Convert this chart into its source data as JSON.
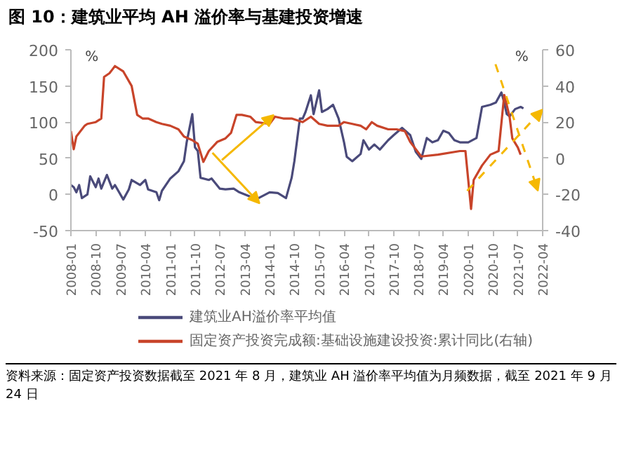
{
  "chart_data": {
    "type": "line",
    "title": "图 10：建筑业平均 AH 溢价率与基建投资增速",
    "ylabel": "%",
    "y2label": "%",
    "legend": "bottom",
    "xlim": [
      "2008-01",
      "2022-04"
    ],
    "xticks": [
      "2008-01",
      "2008-10",
      "2009-07",
      "2010-04",
      "2011-01",
      "2011-10",
      "2012-07",
      "2013-04",
      "2014-01",
      "2014-10",
      "2015-07",
      "2016-04",
      "2017-01",
      "2017-10",
      "2018-07",
      "2019-04",
      "2020-01",
      "2020-10",
      "2021-07",
      "2022-04"
    ],
    "ylim": [
      -50,
      200
    ],
    "yticks": [
      -50,
      0,
      50,
      100,
      150,
      200
    ],
    "y2lim": [
      -40,
      60
    ],
    "y2ticks": [
      -40,
      -20,
      0,
      20,
      40,
      60
    ],
    "series": [
      {
        "name": "建筑业AH溢价率平均值",
        "color": "#4a4a7a",
        "x": [
          "2008-01",
          "2008-02",
          "2008-03",
          "2008-04",
          "2008-05",
          "2008-07",
          "2008-08",
          "2008-10",
          "2008-11",
          "2008-12",
          "2009-02",
          "2009-04",
          "2009-05",
          "2009-08",
          "2009-10",
          "2009-11",
          "2010-02",
          "2010-04",
          "2010-05",
          "2010-08",
          "2010-09",
          "2010-10",
          "2011-01",
          "2011-04",
          "2011-06",
          "2011-07",
          "2011-09",
          "2011-10",
          "2011-11",
          "2011-12",
          "2012-03",
          "2012-04",
          "2012-07",
          "2012-09",
          "2012-12",
          "2013-02",
          "2013-06",
          "2013-09",
          "2014-01",
          "2014-04",
          "2014-07",
          "2014-09",
          "2014-10",
          "2014-12",
          "2015-01",
          "2015-02",
          "2015-04",
          "2015-05",
          "2015-07",
          "2015-08",
          "2015-10",
          "2015-12",
          "2016-02",
          "2016-04",
          "2016-05",
          "2016-07",
          "2016-10",
          "2016-11",
          "2017-01",
          "2017-03",
          "2017-05",
          "2017-08",
          "2017-10",
          "2018-01",
          "2018-04",
          "2018-06",
          "2018-08",
          "2018-10",
          "2018-12",
          "2019-02",
          "2019-04",
          "2019-06",
          "2019-08",
          "2019-10",
          "2020-01",
          "2020-04",
          "2020-06",
          "2020-09",
          "2020-11",
          "2021-01",
          "2021-02",
          "2021-03",
          "2021-04",
          "2021-06",
          "2021-08",
          "2021-09"
        ],
        "values": [
          13,
          10,
          3,
          13,
          -5,
          0,
          25,
          10,
          22,
          8,
          27,
          8,
          13,
          -7,
          7,
          20,
          13,
          20,
          7,
          3,
          -8,
          5,
          22,
          32,
          46,
          72,
          111,
          65,
          60,
          23,
          20,
          22,
          8,
          7,
          8,
          3,
          -3,
          -5,
          3,
          2,
          -5,
          23,
          46,
          105,
          105,
          114,
          137,
          111,
          144,
          114,
          118,
          124,
          105,
          72,
          52,
          46,
          56,
          75,
          62,
          69,
          62,
          75,
          82,
          92,
          82,
          59,
          49,
          78,
          72,
          75,
          88,
          85,
          75,
          72,
          72,
          78,
          121,
          124,
          127,
          141,
          127,
          111,
          108,
          118,
          121,
          119
        ]
      },
      {
        "name": "固定资产投资完成额:基础设施建设投资:累计同比(右轴)",
        "color": "#c8442a",
        "axis": "y2",
        "x": [
          "2008-01",
          "2008-02",
          "2008-03",
          "2008-06",
          "2008-07",
          "2008-10",
          "2008-12",
          "2009-01",
          "2009-03",
          "2009-04",
          "2009-05",
          "2009-08",
          "2009-11",
          "2010-01",
          "2010-03",
          "2010-05",
          "2010-08",
          "2010-10",
          "2011-01",
          "2011-04",
          "2011-06",
          "2011-09",
          "2011-11",
          "2012-01",
          "2012-03",
          "2012-06",
          "2012-09",
          "2012-11",
          "2013-01",
          "2013-03",
          "2013-06",
          "2013-08",
          "2014-01",
          "2014-03",
          "2014-06",
          "2014-09",
          "2015-01",
          "2015-04",
          "2015-07",
          "2015-10",
          "2016-02",
          "2016-04",
          "2016-07",
          "2016-10",
          "2016-12",
          "2017-02",
          "2017-04",
          "2017-08",
          "2017-11",
          "2018-02",
          "2018-04",
          "2018-08",
          "2019-02",
          "2019-10",
          "2019-12",
          "2020-02",
          "2020-03",
          "2020-06",
          "2020-09",
          "2020-12",
          "2021-02",
          "2021-04",
          "2021-05",
          "2021-07",
          "2021-08"
        ],
        "values": [
          15,
          5,
          12,
          18,
          19,
          20,
          22,
          45,
          47,
          49,
          51,
          48,
          40,
          24,
          22,
          22,
          20,
          19,
          18,
          16,
          12,
          10,
          8,
          -2,
          4,
          9,
          11,
          14,
          24,
          24,
          23,
          20,
          19,
          23,
          22,
          22,
          20,
          23,
          19,
          18,
          18,
          20,
          19,
          18,
          16,
          20,
          18,
          16,
          16,
          15,
          9,
          1,
          2,
          4,
          4,
          -28,
          -12,
          -4,
          2,
          4,
          35,
          23,
          11,
          6,
          2
        ]
      }
    ],
    "annotations": [
      "资料来源：固定资产投资数据截至 2021 年 8 月，建筑业 AH 溢价率平均值为月频数据，截至 2021 年 9 月 24 日"
    ]
  }
}
